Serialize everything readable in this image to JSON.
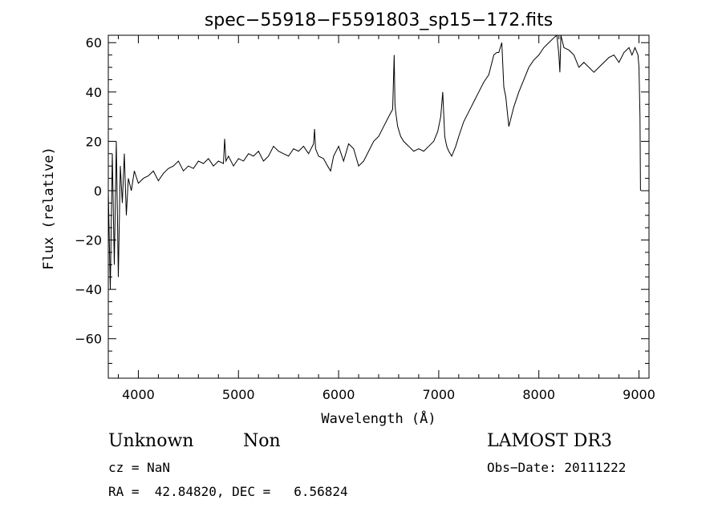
{
  "chart_data": {
    "type": "line",
    "title": "spec−55918−F5591803_sp15−172.fits",
    "xlabel": "Wavelength (Å)",
    "ylabel": "Flux (relative)",
    "xlim": [
      3700,
      9100
    ],
    "ylim": [
      -76,
      63
    ],
    "xticks": [
      4000,
      5000,
      6000,
      7000,
      8000,
      9000
    ],
    "yticks": [
      -60,
      -40,
      -20,
      0,
      20,
      40,
      60
    ],
    "ytick_labels": [
      "−60",
      "−40",
      "−20",
      "0",
      "20",
      "40",
      "60"
    ],
    "grid": false,
    "series": [
      {
        "x": [
          3700,
          3720,
          3740,
          3760,
          3780,
          3800,
          3820,
          3840,
          3860,
          3880,
          3900,
          3930,
          3960,
          4000,
          4050,
          4100,
          4150,
          4200,
          4250,
          4300,
          4350,
          4400,
          4450,
          4500,
          4550,
          4600,
          4650,
          4700,
          4750,
          4800,
          4850,
          4862,
          4875,
          4900,
          4950,
          5000,
          5050,
          5100,
          5150,
          5200,
          5250,
          5300,
          5350,
          5400,
          5450,
          5500,
          5550,
          5600,
          5650,
          5700,
          5750,
          5760,
          5770,
          5800,
          5850,
          5890,
          5920,
          5950,
          6000,
          6050,
          6100,
          6150,
          6200,
          6250,
          6300,
          6350,
          6400,
          6450,
          6500,
          6540,
          6555,
          6563,
          6570,
          6590,
          6620,
          6650,
          6700,
          6750,
          6800,
          6850,
          6900,
          6950,
          6990,
          7020,
          7040,
          7060,
          7080,
          7100,
          7130,
          7170,
          7200,
          7250,
          7300,
          7350,
          7400,
          7450,
          7500,
          7550,
          7580,
          7600,
          7630,
          7650,
          7670,
          7700,
          7750,
          7800,
          7850,
          7900,
          7950,
          8000,
          8050,
          8100,
          8150,
          8180,
          8200,
          8210,
          8220,
          8250,
          8300,
          8350,
          8400,
          8450,
          8500,
          8550,
          8600,
          8650,
          8700,
          8750,
          8800,
          8850,
          8900,
          8930,
          8960,
          8990,
          9000,
          9010,
          9015
        ],
        "y": [
          0,
          -40,
          15,
          -30,
          20,
          -35,
          10,
          -5,
          15,
          -10,
          5,
          0,
          8,
          3,
          5,
          6,
          8,
          4,
          7,
          9,
          10,
          12,
          8,
          10,
          9,
          12,
          11,
          13,
          10,
          12,
          11,
          21,
          12,
          14,
          10,
          13,
          12,
          15,
          14,
          16,
          12,
          14,
          18,
          16,
          15,
          14,
          17,
          16,
          18,
          15,
          19,
          25,
          17,
          14,
          13,
          10,
          8,
          14,
          18,
          12,
          19,
          17,
          10,
          12,
          16,
          20,
          22,
          26,
          30,
          33,
          55,
          35,
          32,
          26,
          22,
          20,
          18,
          16,
          17,
          16,
          18,
          20,
          24,
          30,
          40,
          22,
          18,
          16,
          14,
          18,
          22,
          28,
          32,
          36,
          40,
          44,
          47,
          55,
          56,
          56,
          60,
          42,
          38,
          26,
          34,
          40,
          45,
          50,
          53,
          55,
          58,
          60,
          62,
          63,
          55,
          48,
          63,
          58,
          57,
          55,
          50,
          52,
          50,
          48,
          50,
          52,
          54,
          55,
          52,
          56,
          58,
          55,
          58,
          55,
          50,
          30,
          0
        ]
      }
    ]
  },
  "annotations": {
    "object_class": "Unknown",
    "object_subclass": "Non",
    "survey": "LAMOST DR3",
    "redshift": "cz = NaN",
    "obs_date": "Obs−Date: 20111222",
    "coords": "RA =  42.84820, DEC =   6.56824"
  }
}
